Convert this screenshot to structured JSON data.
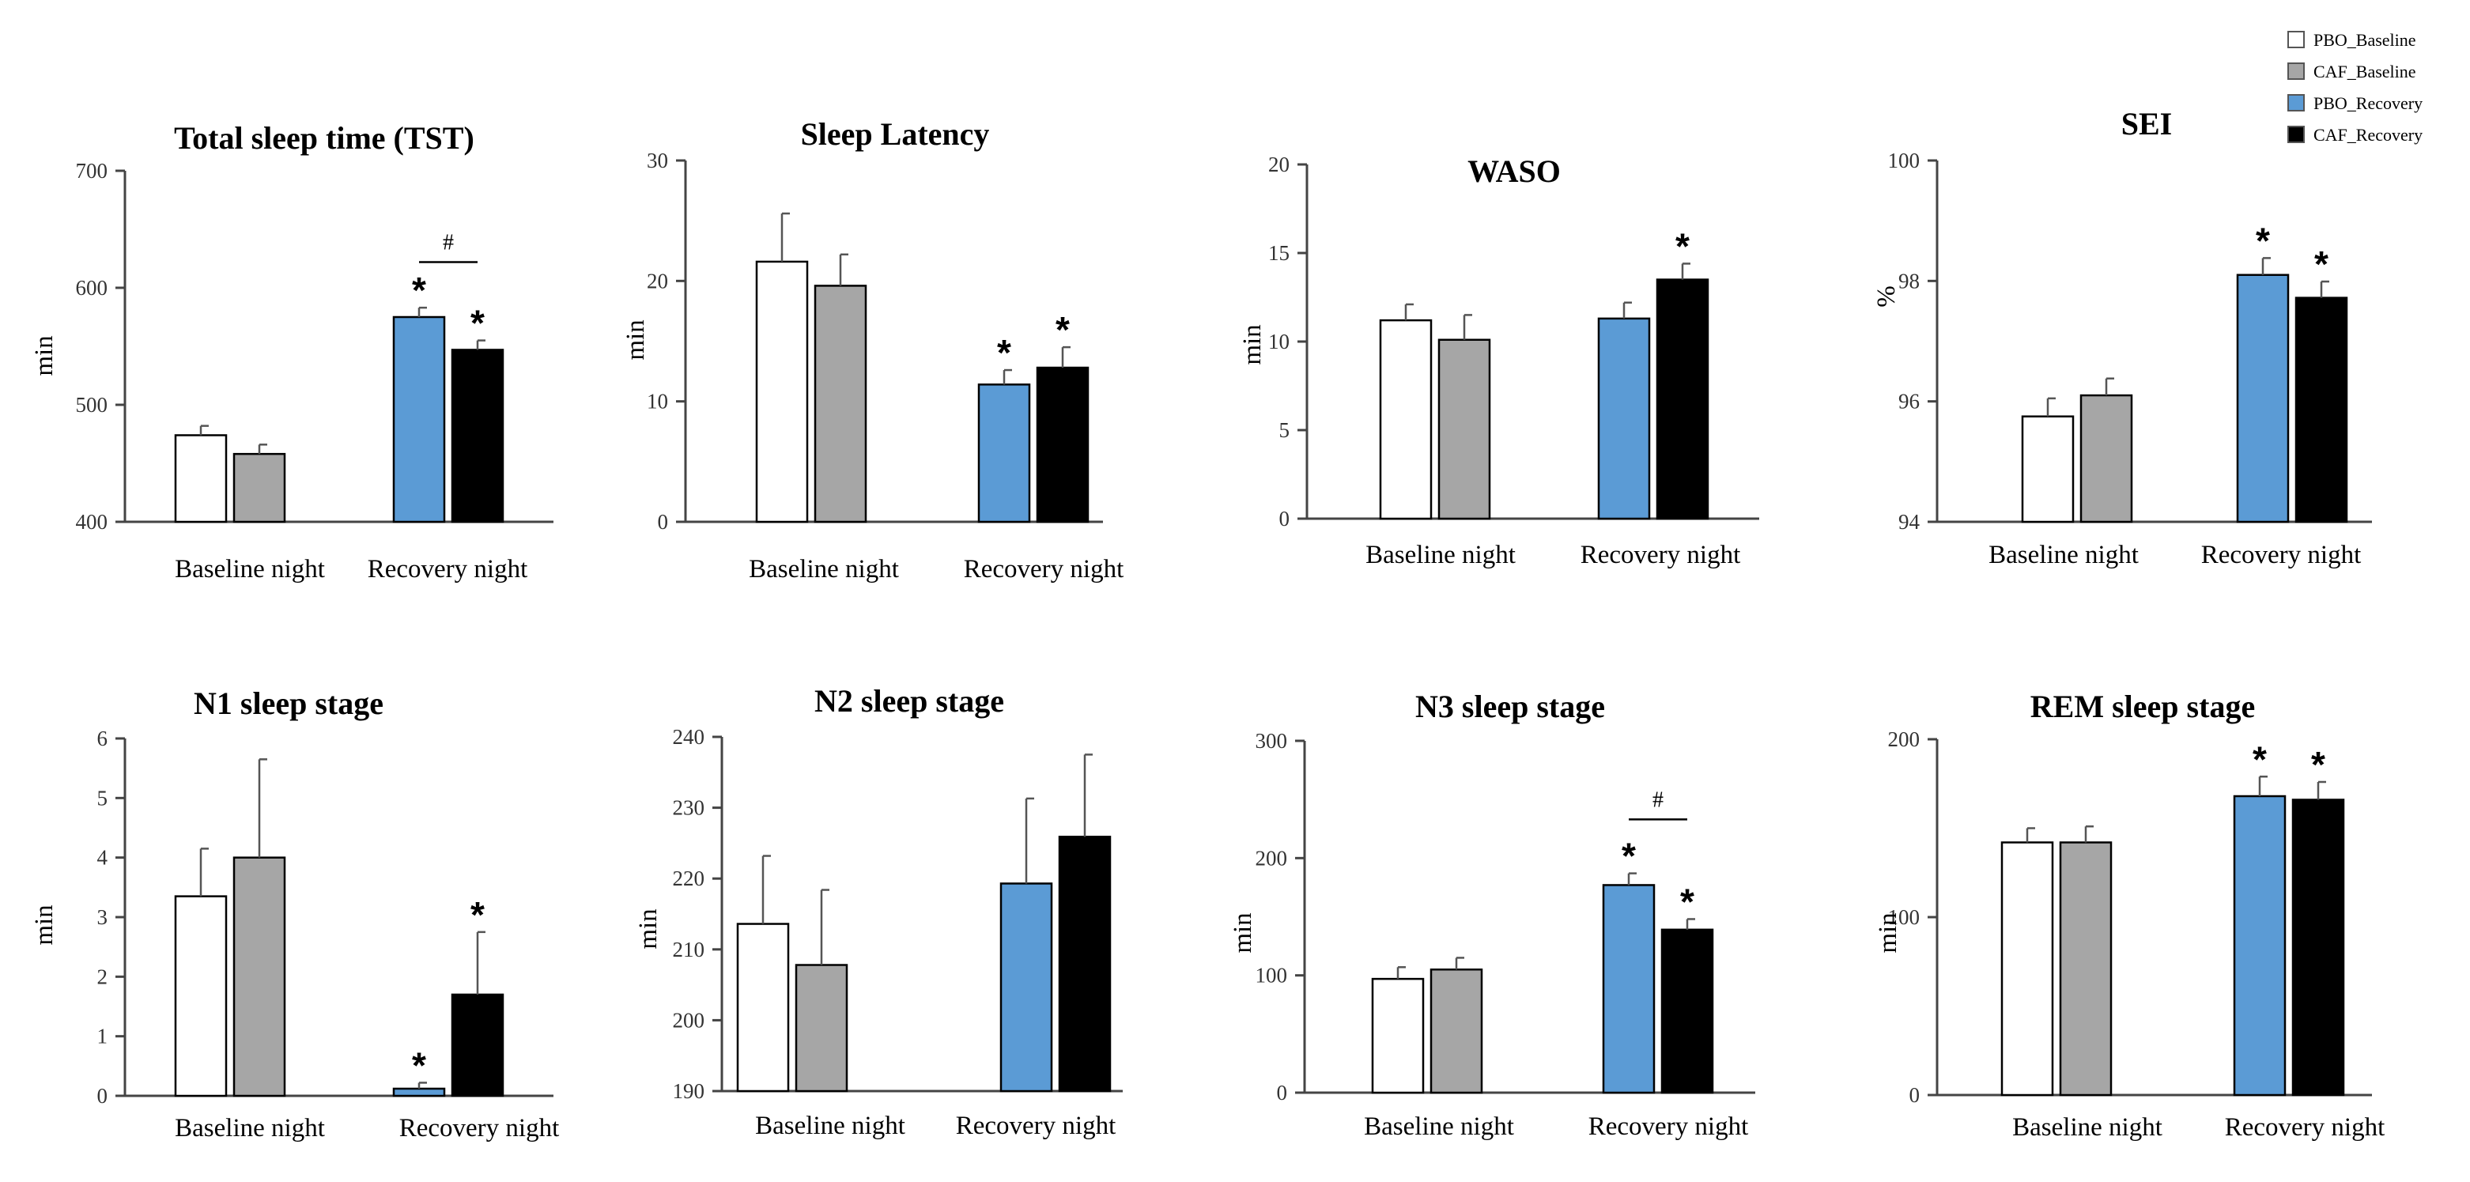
{
  "legend": [
    {
      "name": "PBO_Baseline",
      "color": "#ffffff"
    },
    {
      "name": "CAF_Baseline",
      "color": "#a6a6a6"
    },
    {
      "name": "PBO_Recovery",
      "color": "#5b9bd5"
    },
    {
      "name": "CAF_Recovery",
      "color": "#000000"
    }
  ],
  "chart_data": [
    {
      "type": "bar",
      "title": "Total sleep time (TST)",
      "ylabel": "min",
      "categories": [
        "Baseline night",
        "Recovery night"
      ],
      "ylim": [
        400,
        700
      ],
      "yticks": [
        "400",
        "500",
        "600",
        "700"
      ],
      "series": [
        {
          "name": "PBO_Baseline",
          "values": [
            474,
            null
          ],
          "errors": [
            8,
            null
          ]
        },
        {
          "name": "CAF_Baseline",
          "values": [
            458,
            null
          ],
          "errors": [
            8,
            null
          ]
        },
        {
          "name": "PBO_Recovery",
          "values": [
            null,
            575
          ],
          "errors": [
            null,
            8
          ]
        },
        {
          "name": "CAF_Recovery",
          "values": [
            null,
            547
          ],
          "errors": [
            null,
            8
          ]
        }
      ],
      "annotations": [
        {
          "label": "*",
          "series": "PBO_Recovery",
          "category": "Recovery night"
        },
        {
          "label": "*",
          "series": "CAF_Recovery",
          "category": "Recovery night"
        },
        {
          "label": "#",
          "between": [
            "PBO_Recovery",
            "CAF_Recovery"
          ],
          "category": "Recovery night",
          "y": 622
        }
      ]
    },
    {
      "type": "bar",
      "title": "Sleep Latency",
      "ylabel": "min",
      "categories": [
        "Baseline night",
        "Recovery night"
      ],
      "ylim": [
        0,
        30
      ],
      "yticks": [
        "0",
        "10",
        "20",
        "30"
      ],
      "series": [
        {
          "name": "PBO_Baseline",
          "values": [
            21.6,
            null
          ],
          "errors": [
            4.0,
            null
          ]
        },
        {
          "name": "CAF_Baseline",
          "values": [
            19.6,
            null
          ],
          "errors": [
            2.6,
            null
          ]
        },
        {
          "name": "PBO_Recovery",
          "values": [
            null,
            11.4
          ],
          "errors": [
            null,
            1.2
          ]
        },
        {
          "name": "CAF_Recovery",
          "values": [
            null,
            12.8
          ],
          "errors": [
            null,
            1.7
          ]
        }
      ],
      "annotations": [
        {
          "label": "*",
          "series": "PBO_Recovery",
          "category": "Recovery night"
        },
        {
          "label": "*",
          "series": "CAF_Recovery",
          "category": "Recovery night"
        }
      ]
    },
    {
      "type": "bar",
      "title": "WASO",
      "ylabel": "min",
      "categories": [
        "Baseline night",
        "Recovery night"
      ],
      "ylim": [
        0,
        20
      ],
      "yticks": [
        "0",
        "5",
        "10",
        "15",
        "20"
      ],
      "series": [
        {
          "name": "PBO_Baseline",
          "values": [
            11.2,
            null
          ],
          "errors": [
            0.9,
            null
          ]
        },
        {
          "name": "CAF_Baseline",
          "values": [
            10.1,
            null
          ],
          "errors": [
            1.4,
            null
          ]
        },
        {
          "name": "PBO_Recovery",
          "values": [
            null,
            11.3
          ],
          "errors": [
            null,
            0.9
          ]
        },
        {
          "name": "CAF_Recovery",
          "values": [
            null,
            13.5
          ],
          "errors": [
            null,
            0.9
          ]
        }
      ],
      "annotations": [
        {
          "label": "*",
          "series": "CAF_Recovery",
          "category": "Recovery night"
        }
      ]
    },
    {
      "type": "bar",
      "title": "SEI",
      "ylabel": "%",
      "categories": [
        "Baseline night",
        "Recovery night"
      ],
      "ylim": [
        94,
        100
      ],
      "yticks": [
        "94",
        "96",
        "98",
        "100"
      ],
      "series": [
        {
          "name": "PBO_Baseline",
          "values": [
            95.75,
            null
          ],
          "errors": [
            0.3,
            null
          ]
        },
        {
          "name": "CAF_Baseline",
          "values": [
            96.1,
            null
          ],
          "errors": [
            0.28,
            null
          ]
        },
        {
          "name": "PBO_Recovery",
          "values": [
            null,
            98.1
          ],
          "errors": [
            null,
            0.28
          ]
        },
        {
          "name": "CAF_Recovery",
          "values": [
            null,
            97.72
          ],
          "errors": [
            null,
            0.27
          ]
        }
      ],
      "annotations": [
        {
          "label": "*",
          "series": "PBO_Recovery",
          "category": "Recovery night"
        },
        {
          "label": "*",
          "series": "CAF_Recovery",
          "category": "Recovery night"
        }
      ]
    },
    {
      "type": "bar",
      "title": "N1 sleep stage",
      "ylabel": "min",
      "categories": [
        "Baseline night",
        "Recovery night"
      ],
      "ylim": [
        0,
        6
      ],
      "yticks": [
        "0",
        "1",
        "2",
        "3",
        "4",
        "5",
        "6"
      ],
      "series": [
        {
          "name": "PBO_Baseline",
          "values": [
            3.35,
            null
          ],
          "errors": [
            0.8,
            null
          ]
        },
        {
          "name": "CAF_Baseline",
          "values": [
            4.0,
            null
          ],
          "errors": [
            1.65,
            null
          ]
        },
        {
          "name": "PBO_Recovery",
          "values": [
            null,
            0.12
          ],
          "errors": [
            null,
            0.1
          ]
        },
        {
          "name": "CAF_Recovery",
          "values": [
            null,
            1.7
          ],
          "errors": [
            null,
            1.05
          ]
        }
      ],
      "annotations": [
        {
          "label": "*",
          "series": "PBO_Recovery",
          "category": "Recovery night"
        },
        {
          "label": "*",
          "series": "CAF_Recovery",
          "category": "Recovery night"
        }
      ]
    },
    {
      "type": "bar",
      "title": "N2 sleep stage",
      "ylabel": "min",
      "categories": [
        "Baseline night",
        "Recovery night"
      ],
      "ylim": [
        190,
        240
      ],
      "yticks": [
        "190",
        "200",
        "210",
        "220",
        "230",
        "240"
      ],
      "series": [
        {
          "name": "PBO_Baseline",
          "values": [
            213.6,
            null
          ],
          "errors": [
            9.6,
            null
          ]
        },
        {
          "name": "CAF_Baseline",
          "values": [
            207.8,
            null
          ],
          "errors": [
            10.6,
            null
          ]
        },
        {
          "name": "PBO_Recovery",
          "values": [
            null,
            219.3
          ],
          "errors": [
            null,
            12.0
          ]
        },
        {
          "name": "CAF_Recovery",
          "values": [
            null,
            225.9
          ],
          "errors": [
            null,
            11.6
          ]
        }
      ],
      "annotations": []
    },
    {
      "type": "bar",
      "title": "N3 sleep stage",
      "ylabel": "min",
      "categories": [
        "Baseline night",
        "Recovery night"
      ],
      "ylim": [
        0,
        300
      ],
      "yticks": [
        "0",
        "100",
        "200",
        "300"
      ],
      "series": [
        {
          "name": "PBO_Baseline",
          "values": [
            97,
            null
          ],
          "errors": [
            10,
            null
          ]
        },
        {
          "name": "CAF_Baseline",
          "values": [
            105,
            null
          ],
          "errors": [
            10,
            null
          ]
        },
        {
          "name": "PBO_Recovery",
          "values": [
            null,
            177
          ],
          "errors": [
            null,
            10
          ]
        },
        {
          "name": "CAF_Recovery",
          "values": [
            null,
            139
          ],
          "errors": [
            null,
            9
          ]
        }
      ],
      "annotations": [
        {
          "label": "*",
          "series": "PBO_Recovery",
          "category": "Recovery night"
        },
        {
          "label": "*",
          "series": "CAF_Recovery",
          "category": "Recovery night"
        },
        {
          "label": "#",
          "between": [
            "PBO_Recovery",
            "CAF_Recovery"
          ],
          "category": "Recovery night",
          "y": 233
        }
      ]
    },
    {
      "type": "bar",
      "title": "REM sleep stage",
      "ylabel": "min",
      "categories": [
        "Baseline night",
        "Recovery night"
      ],
      "ylim": [
        0,
        200
      ],
      "yticks": [
        "0",
        "100",
        "200"
      ],
      "series": [
        {
          "name": "PBO_Baseline",
          "values": [
            142,
            null
          ],
          "errors": [
            8,
            null
          ]
        },
        {
          "name": "CAF_Baseline",
          "values": [
            142,
            null
          ],
          "errors": [
            9,
            null
          ]
        },
        {
          "name": "PBO_Recovery",
          "values": [
            null,
            168
          ],
          "errors": [
            null,
            11
          ]
        },
        {
          "name": "CAF_Recovery",
          "values": [
            null,
            166
          ],
          "errors": [
            null,
            10
          ]
        }
      ],
      "annotations": [
        {
          "label": "*",
          "series": "PBO_Recovery",
          "category": "Recovery night"
        },
        {
          "label": "*",
          "series": "CAF_Recovery",
          "category": "Recovery night"
        }
      ]
    }
  ]
}
